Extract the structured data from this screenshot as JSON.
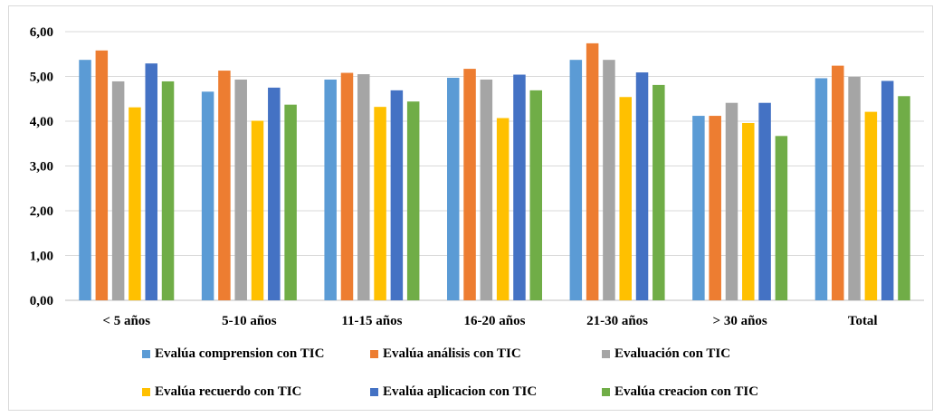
{
  "chart_data": {
    "type": "bar",
    "title": "",
    "xlabel": "",
    "ylabel": "",
    "ylim": [
      0,
      6
    ],
    "yticks": [
      "0,00",
      "1,00",
      "2,00",
      "3,00",
      "4,00",
      "5,00",
      "6,00"
    ],
    "grid": true,
    "legend_position": "bottom",
    "categories": [
      "< 5 años",
      "5-10 años",
      "11-15 años",
      "16-20 años",
      "21-30 años",
      "> 30 años",
      "Total"
    ],
    "series": [
      {
        "name": "Evalúa comprension con TIC",
        "color": "#5b9bd5",
        "values": [
          5.37,
          4.66,
          4.93,
          4.97,
          5.37,
          4.12,
          4.96
        ]
      },
      {
        "name": "Evalúa análisis con TIC",
        "color": "#ed7d31",
        "values": [
          5.58,
          5.13,
          5.08,
          5.17,
          5.74,
          4.12,
          5.24
        ]
      },
      {
        "name": "Evaluación con TIC",
        "color": "#a5a5a5",
        "values": [
          4.89,
          4.93,
          5.05,
          4.93,
          5.37,
          4.41,
          4.99
        ]
      },
      {
        "name": "Evalúa recuerdo con TIC",
        "color": "#ffc000",
        "values": [
          4.31,
          4.01,
          4.32,
          4.07,
          4.54,
          3.96,
          4.21
        ]
      },
      {
        "name": "Evalúa aplicacion con TIC",
        "color": "#4472c4",
        "values": [
          5.29,
          4.75,
          4.69,
          5.04,
          5.09,
          4.41,
          4.9
        ]
      },
      {
        "name": "Evalúa creacion con TIC",
        "color": "#70ad47",
        "values": [
          4.89,
          4.37,
          4.44,
          4.69,
          4.81,
          3.67,
          4.56
        ]
      }
    ]
  }
}
